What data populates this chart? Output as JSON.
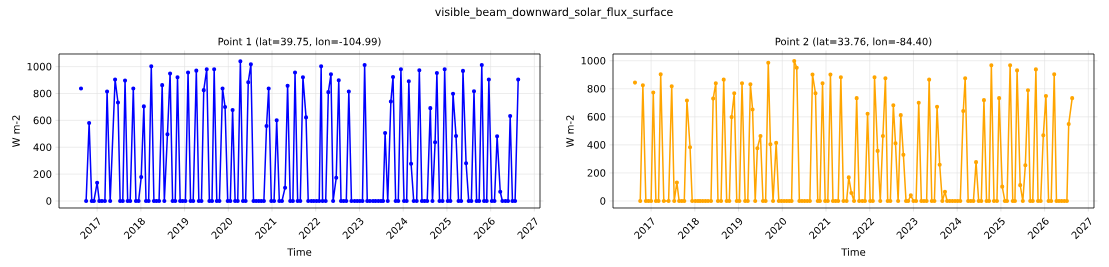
{
  "chart_data": [
    {
      "type": "line",
      "title": "visible_beam_downward_solar_flux_surface",
      "subtitle": "Point 1 (lat=39.75, lon=-104.99)",
      "xlabel": "Time",
      "ylabel": "W m-2",
      "color": "#0000ff",
      "marker": "circle",
      "grid": true,
      "xlim": [
        "2016-02-17",
        "2027-02-17"
      ],
      "ylim": [
        -52,
        1094
      ],
      "xticks": [
        "2017",
        "2018",
        "2019",
        "2020",
        "2021",
        "2022",
        "2023",
        "2024",
        "2025",
        "2026",
        "2027"
      ],
      "yticks": [
        0,
        200,
        400,
        600,
        800,
        1000
      ],
      "x": [
        "2016-08-19",
        "2016-09-10",
        "2016-10-01",
        "2016-10-26",
        "2016-11-17",
        "2016-12-05",
        "2017-01-01",
        "2017-01-19",
        "2017-02-10",
        "2017-03-07",
        "2017-03-25",
        "2017-04-20",
        "2017-05-31",
        "2017-06-24",
        "2017-07-12",
        "2017-08-03",
        "2017-08-22",
        "2017-09-13",
        "2017-10-04",
        "2017-10-30",
        "2017-11-21",
        "2017-12-13",
        "2018-01-04",
        "2018-01-26",
        "2018-02-13",
        "2018-03-07",
        "2018-03-29",
        "2018-04-20",
        "2018-05-11",
        "2018-06-02",
        "2018-06-28",
        "2018-07-16",
        "2018-08-11",
        "2018-09-02",
        "2018-09-23",
        "2018-10-15",
        "2018-11-03",
        "2018-11-25",
        "2018-12-16",
        "2019-01-08",
        "2019-01-30",
        "2019-02-20",
        "2019-03-14",
        "2019-04-09",
        "2019-04-30",
        "2019-05-22",
        "2019-06-10",
        "2019-07-05",
        "2019-07-27",
        "2019-08-18",
        "2019-09-05",
        "2019-09-27",
        "2019-10-19",
        "2019-11-14",
        "2019-12-05",
        "2019-12-27",
        "2020-01-18",
        "2020-02-06",
        "2020-02-27",
        "2020-03-20",
        "2020-04-11",
        "2020-05-03",
        "2020-05-25",
        "2020-06-16",
        "2020-07-08",
        "2020-07-30",
        "2020-08-21",
        "2020-09-12",
        "2020-10-03",
        "2020-10-25",
        "2020-11-16",
        "2020-12-04",
        "2020-12-26",
        "2021-01-18",
        "2021-02-09",
        "2021-03-03",
        "2021-03-25",
        "2021-04-20",
        "2021-05-11",
        "2021-06-02",
        "2021-06-24",
        "2021-07-12",
        "2021-08-03",
        "2021-08-25",
        "2021-09-16",
        "2021-10-12",
        "2021-10-30",
        "2021-11-25",
        "2021-12-16",
        "2022-01-08",
        "2022-01-30",
        "2022-02-15",
        "2022-02-27",
        "2022-03-25",
        "2022-04-16",
        "2022-05-08",
        "2022-05-26",
        "2022-06-21",
        "2022-07-12",
        "2022-07-31",
        "2022-08-22",
        "2022-09-13",
        "2022-10-04",
        "2022-10-26",
        "2022-11-21",
        "2022-12-13",
        "2023-01-04",
        "2023-01-26",
        "2023-02-13",
        "2023-03-07",
        "2023-03-29",
        "2023-04-24",
        "2023-05-15",
        "2023-06-07",
        "2023-06-29",
        "2023-07-17",
        "2023-08-03",
        "2023-08-25",
        "2023-09-20",
        "2023-10-08",
        "2023-10-30",
        "2023-11-21",
        "2023-12-13",
        "2024-01-08",
        "2024-01-30",
        "2024-02-17",
        "2024-03-07",
        "2024-03-29",
        "2024-04-23",
        "2024-05-15",
        "2024-06-06",
        "2024-06-28",
        "2024-07-20",
        "2024-08-15",
        "2024-09-02",
        "2024-09-24",
        "2024-10-09",
        "2024-10-31",
        "2024-11-25",
        "2024-12-13",
        "2025-01-08",
        "2025-01-30",
        "2025-02-21",
        "2025-03-18",
        "2025-04-08",
        "2025-04-30",
        "2025-05-15",
        "2025-06-10",
        "2025-07-02",
        "2025-07-24",
        "2025-08-15",
        "2025-09-06",
        "2025-09-27",
        "2025-10-19",
        "2025-11-07",
        "2025-11-29",
        "2025-12-17",
        "2026-01-11",
        "2026-02-02",
        "2026-02-24",
        "2026-03-22",
        "2026-04-09",
        "2026-05-04",
        "2026-05-26",
        "2026-06-13",
        "2026-07-02",
        "2026-07-24",
        "2026-08-19"
      ],
      "values": [
        837,
        null,
        0,
        580,
        0,
        0,
        136,
        0,
        0,
        0,
        815,
        0,
        904,
        733,
        0,
        0,
        896,
        0,
        0,
        837,
        0,
        0,
        178,
        704,
        0,
        0,
        1002,
        0,
        0,
        0,
        862,
        0,
        496,
        948,
        0,
        0,
        921,
        0,
        0,
        0,
        956,
        0,
        0,
        970,
        0,
        0,
        825,
        980,
        0,
        0,
        980,
        0,
        0,
        837,
        699,
        0,
        0,
        677,
        0,
        0,
        1040,
        0,
        0,
        884,
        1017,
        0,
        0,
        0,
        0,
        0,
        558,
        837,
        0,
        0,
        600,
        0,
        0,
        99,
        857,
        0,
        0,
        956,
        0,
        0,
        921,
        622,
        0,
        0,
        0,
        0,
        0,
        1002,
        0,
        0,
        810,
        943,
        0,
        173,
        899,
        0,
        0,
        0,
        815,
        0,
        0,
        0,
        0,
        0,
        1012,
        0,
        0,
        0,
        0,
        0,
        0,
        0,
        506,
        0,
        741,
        923,
        0,
        0,
        980,
        0,
        0,
        891,
        277,
        0,
        0,
        973,
        0,
        0,
        0,
        691,
        0,
        437,
        953,
        0,
        0,
        980,
        0,
        0,
        798,
        484,
        0,
        0,
        968,
        281,
        0,
        0,
        817,
        0,
        0,
        1012,
        0,
        0,
        904,
        0,
        0,
        481,
        69,
        0,
        0,
        0,
        632,
        0,
        0,
        904
      ]
    },
    {
      "type": "line",
      "subtitle": "Point 2 (lat=33.76, lon=-84.40)",
      "xlabel": "Time",
      "ylabel": "W m-2",
      "color": "#ffa500",
      "marker": "circle",
      "grid": true,
      "xlim": [
        "2016-02-17",
        "2027-02-17"
      ],
      "ylim": [
        -50,
        1048
      ],
      "xticks": [
        "2017",
        "2018",
        "2019",
        "2020",
        "2021",
        "2022",
        "2023",
        "2024",
        "2025",
        "2026",
        "2027"
      ],
      "yticks": [
        0,
        200,
        400,
        600,
        800,
        1000
      ],
      "x": [
        "2016-08-19",
        "2016-09-10",
        "2016-10-02",
        "2016-10-24",
        "2016-11-18",
        "2016-12-10",
        "2017-01-01",
        "2017-01-19",
        "2017-02-10",
        "2017-03-04",
        "2017-03-22",
        "2017-04-17",
        "2017-05-27",
        "2017-06-22",
        "2017-07-13",
        "2017-08-04",
        "2017-08-23",
        "2017-09-14",
        "2017-10-05",
        "2017-10-27",
        "2017-11-22",
        "2017-12-10",
        "2018-01-05",
        "2018-01-27",
        "2018-02-14",
        "2018-03-08",
        "2018-03-30",
        "2018-04-21",
        "2018-05-16",
        "2018-06-03",
        "2018-06-25",
        "2018-07-13",
        "2018-08-08",
        "2018-08-30",
        "2018-09-24",
        "2018-10-16",
        "2018-11-04",
        "2018-11-26",
        "2018-12-17",
        "2019-01-08",
        "2019-01-30",
        "2019-02-25",
        "2019-03-19",
        "2019-04-10",
        "2019-04-28",
        "2019-05-20",
        "2019-06-07",
        "2019-07-03",
        "2019-07-24",
        "2019-08-15",
        "2019-09-06",
        "2019-09-24",
        "2019-10-16",
        "2019-11-11",
        "2019-12-03",
        "2019-12-25",
        "2020-01-16",
        "2020-02-07",
        "2020-02-28",
        "2020-03-19",
        "2020-04-10",
        "2020-05-01",
        "2020-05-23",
        "2020-06-14",
        "2020-07-06",
        "2020-07-28",
        "2020-08-19",
        "2020-09-10",
        "2020-10-05",
        "2020-10-24",
        "2020-11-11",
        "2020-12-03",
        "2020-12-25",
        "2021-01-16",
        "2021-02-07",
        "2021-02-28",
        "2021-03-22",
        "2021-04-13",
        "2021-05-05",
        "2021-05-27",
        "2021-06-22",
        "2021-07-10",
        "2021-08-01",
        "2021-08-23",
        "2021-09-14",
        "2021-10-05",
        "2021-10-31",
        "2021-11-22",
        "2021-12-14",
        "2022-01-05",
        "2022-01-27",
        "2022-02-10",
        "2022-03-08",
        "2022-03-30",
        "2022-04-21",
        "2022-05-12",
        "2022-05-31",
        "2022-06-22",
        "2022-07-17",
        "2022-08-04",
        "2022-08-26",
        "2022-09-17",
        "2022-10-09",
        "2022-10-31",
        "2022-11-18",
        "2022-12-10",
        "2023-01-01",
        "2023-01-23",
        "2023-02-14",
        "2023-03-08",
        "2023-03-30",
        "2023-04-21",
        "2023-05-12",
        "2023-06-03",
        "2023-06-25",
        "2023-07-17",
        "2023-08-08",
        "2023-08-30",
        "2023-09-21",
        "2023-10-09",
        "2023-10-31",
        "2023-11-22",
        "2023-12-14",
        "2024-01-05",
        "2024-01-27",
        "2024-02-21",
        "2024-03-08",
        "2024-04-02",
        "2024-04-24",
        "2024-05-16",
        "2024-06-07",
        "2024-06-29",
        "2024-07-21",
        "2024-08-12",
        "2024-09-03",
        "2024-09-24",
        "2024-10-13",
        "2024-11-04",
        "2024-11-29",
        "2024-12-17",
        "2025-01-12",
        "2025-02-03",
        "2025-02-21",
        "2025-03-19",
        "2025-04-10",
        "2025-04-28",
        "2025-05-16",
        "2025-06-11",
        "2025-07-03",
        "2025-07-24",
        "2025-08-15",
        "2025-09-03",
        "2025-09-24",
        "2025-10-20",
        "2025-11-07",
        "2025-11-29",
        "2025-12-21",
        "2026-01-12",
        "2026-02-03",
        "2026-02-25",
        "2026-03-22",
        "2026-04-10",
        "2026-05-01",
        "2026-05-23",
        "2026-06-14",
        "2026-07-06",
        "2026-07-21",
        "2026-08-19"
      ],
      "values": [
        844,
        null,
        0,
        825,
        0,
        0,
        0,
        773,
        0,
        0,
        903,
        0,
        0,
        818,
        0,
        132,
        0,
        0,
        0,
        716,
        383,
        0,
        0,
        0,
        0,
        0,
        0,
        0,
        0,
        730,
        839,
        0,
        0,
        865,
        0,
        0,
        598,
        768,
        0,
        0,
        839,
        0,
        0,
        832,
        652,
        0,
        376,
        463,
        0,
        0,
        986,
        404,
        0,
        414,
        0,
        0,
        0,
        0,
        0,
        0,
        998,
        950,
        0,
        0,
        0,
        0,
        0,
        901,
        768,
        0,
        0,
        839,
        0,
        0,
        901,
        0,
        0,
        0,
        882,
        0,
        0,
        168,
        57,
        0,
        733,
        0,
        0,
        0,
        622,
        0,
        0,
        882,
        357,
        0,
        463,
        875,
        0,
        0,
        683,
        411,
        0,
        612,
        329,
        0,
        0,
        40,
        0,
        0,
        700,
        0,
        0,
        0,
        865,
        0,
        0,
        671,
        258,
        0,
        66,
        0,
        0,
        0,
        0,
        0,
        0,
        641,
        875,
        0,
        0,
        0,
        277,
        0,
        0,
        719,
        0,
        0,
        967,
        0,
        0,
        733,
        102,
        0,
        0,
        967,
        0,
        0,
        931,
        113,
        0,
        255,
        790,
        0,
        0,
        938,
        0,
        0,
        468,
        749,
        0,
        0,
        903,
        0,
        0,
        0,
        0,
        0,
        548,
        733
      ]
    }
  ]
}
